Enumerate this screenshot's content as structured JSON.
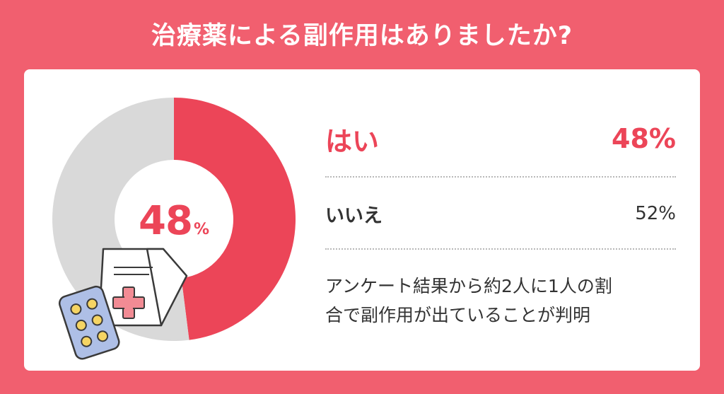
{
  "title": "治療薬による副作用はありましたか?",
  "chart_data": {
    "type": "pie",
    "title": "治療薬による副作用はありましたか?",
    "categories": [
      "はい",
      "いいえ"
    ],
    "values": [
      48,
      52
    ],
    "unit": "%",
    "center_label": "48",
    "center_unit": "%",
    "legend": [
      {
        "label": "はい",
        "value_text": "48%",
        "color": "#ec4558"
      },
      {
        "label": "いいえ",
        "value_text": "52%",
        "color": "#d9d9d9"
      }
    ]
  },
  "note_lines": [
    "アンケート結果から約2人に1人の割",
    "合で副作用が出ていることが判明"
  ],
  "colors": {
    "background": "#f15f6f",
    "accent": "#ec4558",
    "remainder": "#d9d9d9",
    "text": "#333333"
  },
  "icons": [
    "medicine-bag-icon",
    "pill-pack-icon"
  ]
}
